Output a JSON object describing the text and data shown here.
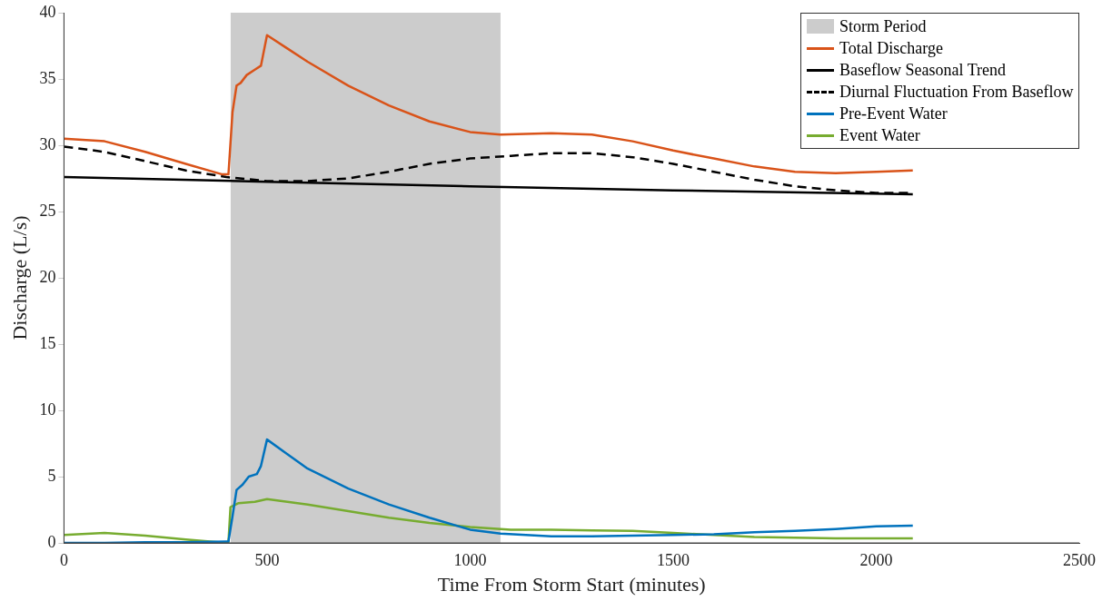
{
  "chart_data": {
    "type": "line",
    "xlabel": "Time From Storm Start (minutes)",
    "ylabel": "Discharge (L/s)",
    "xlim": [
      0,
      2500
    ],
    "xticks": [
      0,
      500,
      1000,
      1500,
      2000,
      2500
    ],
    "ylim": [
      0,
      40
    ],
    "yticks": [
      0,
      5,
      10,
      15,
      20,
      25,
      30,
      35,
      40
    ],
    "grid": false,
    "legend": "top right",
    "marker": "none",
    "series": [
      {
        "type": "area",
        "name": "Storm Period",
        "color": "#cccccc",
        "x": [
          410,
          1075
        ],
        "values": [
          40,
          40
        ]
      },
      {
        "name": "Total Discharge",
        "color": "#d95319",
        "x": [
          0,
          100,
          200,
          300,
          390,
          405,
          415,
          425,
          435,
          450,
          470,
          485,
          500,
          550,
          600,
          700,
          800,
          900,
          1000,
          1075,
          1200,
          1300,
          1400,
          1500,
          1600,
          1700,
          1800,
          1900,
          2000,
          2090
        ],
        "values": [
          30.5,
          30.3,
          29.5,
          28.6,
          27.8,
          27.8,
          32.5,
          34.5,
          34.7,
          35.3,
          35.7,
          36,
          38.3,
          37.3,
          36.3,
          34.5,
          33,
          31.8,
          31,
          30.8,
          30.9,
          30.8,
          30.3,
          29.6,
          29,
          28.4,
          28,
          27.9,
          28,
          28.1
        ]
      },
      {
        "name": "Baseflow Seasonal Trend",
        "color": "#000000",
        "x": [
          0,
          500,
          1000,
          1500,
          2090
        ],
        "values": [
          27.6,
          27.25,
          26.9,
          26.6,
          26.3
        ]
      },
      {
        "name": "Diurnal Fluctuation From Baseflow",
        "color": "#000000",
        "line_style": "dashed",
        "x": [
          0,
          100,
          200,
          300,
          400,
          500,
          600,
          700,
          800,
          900,
          1000,
          1100,
          1200,
          1300,
          1400,
          1500,
          1600,
          1700,
          1800,
          1900,
          2000,
          2090
        ],
        "values": [
          29.9,
          29.5,
          28.8,
          28.1,
          27.6,
          27.3,
          27.3,
          27.5,
          28,
          28.6,
          29,
          29.2,
          29.4,
          29.4,
          29.1,
          28.6,
          28,
          27.4,
          26.9,
          26.6,
          26.4,
          26.4
        ]
      },
      {
        "name": "Pre-Event Water",
        "color": "#0072bd",
        "x": [
          0,
          100,
          200,
          300,
          400,
          405,
          415,
          425,
          440,
          455,
          475,
          485,
          500,
          550,
          600,
          700,
          800,
          900,
          1000,
          1075,
          1200,
          1300,
          1400,
          1500,
          1600,
          1700,
          1800,
          1900,
          2000,
          2090
        ],
        "values": [
          0,
          0,
          0.05,
          0.05,
          0.1,
          0.1,
          2,
          4,
          4.4,
          5,
          5.2,
          5.8,
          7.8,
          6.7,
          5.6,
          4.1,
          2.9,
          1.9,
          1,
          0.7,
          0.5,
          0.5,
          0.55,
          0.6,
          0.65,
          0.8,
          0.9,
          1.05,
          1.25,
          1.3
        ]
      },
      {
        "name": "Event Water",
        "color": "#77ac30",
        "x": [
          0,
          100,
          200,
          300,
          380,
          405,
          410,
          430,
          470,
          500,
          600,
          700,
          800,
          900,
          1000,
          1100,
          1200,
          1300,
          1400,
          1500,
          1600,
          1700,
          1800,
          1900,
          2000,
          2090
        ],
        "values": [
          0.6,
          0.75,
          0.55,
          0.25,
          0.05,
          0.05,
          2.7,
          3,
          3.1,
          3.3,
          2.9,
          2.4,
          1.9,
          1.5,
          1.2,
          1,
          1,
          0.95,
          0.9,
          0.75,
          0.6,
          0.45,
          0.4,
          0.35,
          0.35,
          0.35
        ]
      }
    ]
  }
}
